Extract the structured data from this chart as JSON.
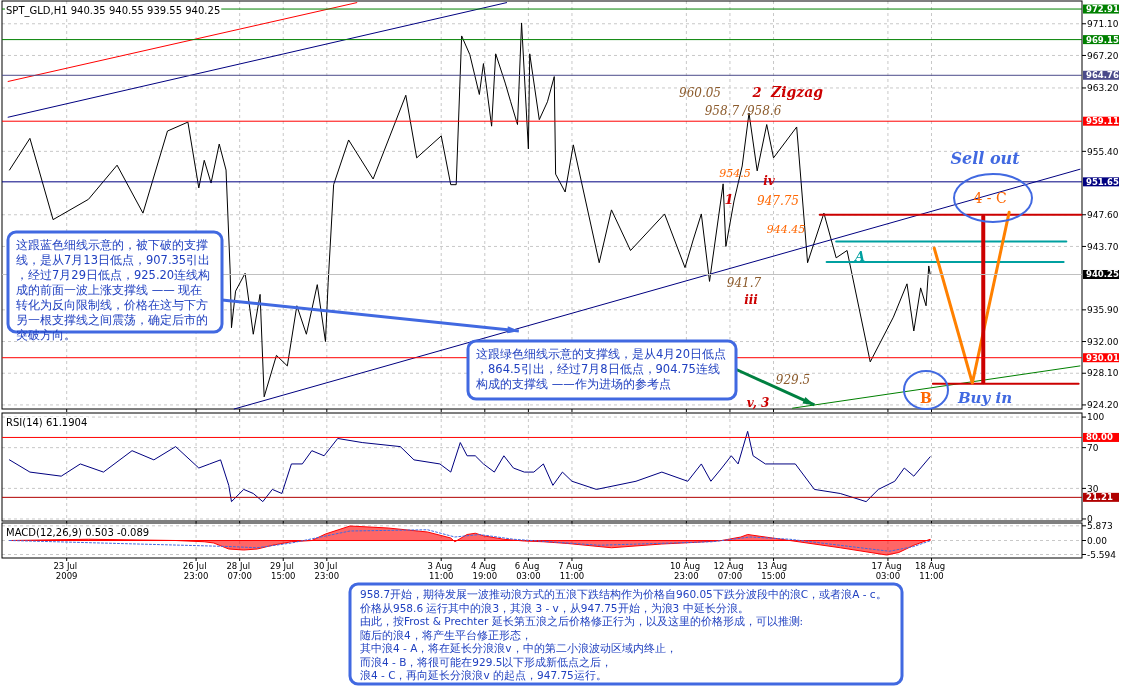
{
  "chart_data": [
    {
      "type": "line",
      "title": "SPT_GLD,H1  940.35 940.55 939.55 940.25",
      "xlim": [
        "2009-07-21T00:30",
        "2009-08-23T01:30"
      ],
      "ylim": [
        923.7,
        973.9
      ],
      "xticks": [
        {
          "value": "2009-07-23T00:00",
          "label": null
        },
        {
          "value": "2009-07-26T23:00",
          "label": null
        },
        {
          "value": "2009-07-28T07:00",
          "label": null
        },
        {
          "value": "2009-07-29T15:00",
          "label": null
        },
        {
          "value": "2009-07-30T23:00",
          "label": null
        },
        {
          "value": "2009-08-03T11:00",
          "label": null
        },
        {
          "value": "2009-08-04T19:00",
          "label": null
        },
        {
          "value": "2009-08-06T03:00",
          "label": null
        },
        {
          "value": "2009-08-07T11:00",
          "label": null
        },
        {
          "value": "2009-08-10T23:00",
          "label": null
        },
        {
          "value": "2009-08-12T07:00",
          "label": null
        },
        {
          "value": "2009-08-13T15:00",
          "label": null
        },
        {
          "value": "2009-08-17T03:00",
          "label": null
        },
        {
          "value": "2009-08-18T11:00",
          "label": null
        }
      ],
      "yticks": [
        {
          "value": 971.1,
          "label": "971.10"
        },
        {
          "value": 967.2,
          "label": "967.20"
        },
        {
          "value": 963.2,
          "label": "963.20"
        },
        {
          "value": 955.4,
          "label": "955.40"
        },
        {
          "value": 947.6,
          "label": "947.60"
        },
        {
          "value": 943.7,
          "label": "943.70"
        },
        {
          "value": 935.9,
          "label": "935.90"
        },
        {
          "value": 932.0,
          "label": "932.00"
        },
        {
          "value": 928.1,
          "label": "928.10"
        },
        {
          "value": 924.2,
          "label": "924.20"
        }
      ],
      "tick_labels": "y",
      "grid": true,
      "series": [
        {
          "color": "#000000",
          "x": [
            "2009-07-21T06:00",
            "2009-07-21T21:00",
            "2009-07-22T14:00",
            "2009-07-23T16:00",
            "2009-07-24T13:00",
            "2009-07-25T08:00",
            "2009-07-26T02:00",
            "2009-07-26T17:00",
            "2009-07-27T01:00",
            "2009-07-27T05:00",
            "2009-07-27T10:00",
            "2009-07-27T16:00",
            "2009-07-27T21:00",
            "2009-07-28T00:00",
            "2009-07-28T01:00",
            "2009-07-28T04:00",
            "2009-07-28T11:00",
            "2009-07-28T17:00",
            "2009-07-28T22:00",
            "2009-07-29T01:00",
            "2009-07-29T10:00",
            "2009-07-29T18:00",
            "2009-07-30T01:00",
            "2009-07-30T08:00",
            "2009-07-30T16:00",
            "2009-07-30T22:00",
            "2009-07-31T00:00",
            "2009-07-31T04:00",
            "2009-07-31T15:00",
            "2009-08-01T09:00",
            "2009-08-02T09:00",
            "2009-08-02T17:00",
            "2009-08-03T11:00",
            "2009-08-03T18:00",
            "2009-08-03T22:00",
            "2009-08-04T02:00",
            "2009-08-04T08:00",
            "2009-08-04T15:00",
            "2009-08-04T18:00",
            "2009-08-05T00:00",
            "2009-08-05T03:00",
            "2009-08-05T10:00",
            "2009-08-05T14:00",
            "2009-08-05T19:00",
            "2009-08-05T22:00",
            "2009-08-06T03:00",
            "2009-08-06T04:00",
            "2009-08-06T11:00",
            "2009-08-06T17:00",
            "2009-08-06T22:00",
            "2009-08-06T23:00",
            "2009-08-07T06:00",
            "2009-08-07T12:00",
            "2009-08-08T07:00",
            "2009-08-08T16:00",
            "2009-08-09T06:00",
            "2009-08-10T07:00",
            "2009-08-10T22:00",
            "2009-08-11T04:00",
            "2009-08-11T10:00",
            "2009-08-11T16:00",
            "2009-08-12T02:00",
            "2009-08-12T04:00",
            "2009-08-12T10:00",
            "2009-08-12T16:00",
            "2009-08-12T21:00",
            "2009-08-13T03:00",
            "2009-08-13T10:00",
            "2009-08-13T15:00",
            "2009-08-14T08:00",
            "2009-08-14T16:00",
            "2009-08-15T04:00",
            "2009-08-15T13:00",
            "2009-08-15T21:00",
            "2009-08-16T14:00",
            "2009-08-17T07:00",
            "2009-08-17T17:00",
            "2009-08-17T22:00",
            "2009-08-18T03:00",
            "2009-08-18T07:00",
            "2009-08-18T09:00",
            "2009-08-18T10:00"
          ],
          "values": [
            953.1,
            957.0,
            947.0,
            949.5,
            953.7,
            947.8,
            957.9,
            959.0,
            950.9,
            954.3,
            951.5,
            956.3,
            953.1,
            940.8,
            933.7,
            938.2,
            940.4,
            932.9,
            937.8,
            925.2,
            930.3,
            929.0,
            936.4,
            932.9,
            939.0,
            932.0,
            939.3,
            951.3,
            956.8,
            952.0,
            962.3,
            954.6,
            957.3,
            951.3,
            951.3,
            969.6,
            967.3,
            962.4,
            966.2,
            958.5,
            967.4,
            963.8,
            961.5,
            958.7,
            971.2,
            955.7,
            967.4,
            959.3,
            961.5,
            964.6,
            952.6,
            950.4,
            956.2,
            941.7,
            948.2,
            943.2,
            947.7,
            941.1,
            944.5,
            947.7,
            939.4,
            951.4,
            943.7,
            949.3,
            953.6,
            960.1,
            953.0,
            958.7,
            954.6,
            958.4,
            941.7,
            947.8,
            942.3,
            943.2,
            929.5,
            935.0,
            939.1,
            933.3,
            938.6,
            936.4,
            941.3,
            940.3
          ]
        },
        {
          "color": "#ff0000",
          "x": [
            "2009-07-21T05:00",
            "2009-07-31T21:00"
          ],
          "values": [
            964.0,
            973.7
          ]
        },
        {
          "color": "#000080",
          "x": [
            "2009-07-21T05:00",
            "2009-08-05T11:00"
          ],
          "values": [
            959.6,
            973.7
          ]
        },
        {
          "color": "#000080",
          "x": [
            "2009-07-28T03:00",
            "2009-08-23T00:00"
          ],
          "values": [
            923.7,
            953.2
          ]
        },
        {
          "color": "#008000",
          "x": [
            "2009-08-14T05:00",
            "2009-08-23T00:00"
          ],
          "values": [
            923.8,
            929.0
          ]
        },
        {
          "color": "#cc0000",
          "x": [
            "2009-08-15T01:00",
            "2009-08-23T01:00"
          ],
          "values": [
            947.6,
            947.6
          ]
        },
        {
          "color": "#00a0a0",
          "x": [
            "2009-08-15T13:00",
            "2009-08-22T14:00"
          ],
          "values": [
            944.3,
            944.3
          ]
        },
        {
          "color": "#00a0a0",
          "x": [
            "2009-08-15T06:00",
            "2009-08-22T12:00"
          ],
          "values": [
            941.8,
            941.8
          ]
        },
        {
          "color": "#cc0000",
          "x": [
            "2009-08-18T12:00",
            "2009-08-22T23:00"
          ],
          "values": [
            926.8,
            926.8
          ]
        },
        {
          "color": "#ff8000",
          "x": [
            "2009-08-18T13:00",
            "2009-08-19T17:00",
            "2009-08-20T20:00"
          ],
          "values": [
            943.5,
            926.9,
            947.9
          ]
        },
        {
          "color": "#cc0000",
          "x": [
            "2009-08-20T01:00",
            "2009-08-20T01:00"
          ],
          "values": [
            927.0,
            947.4
          ]
        }
      ],
      "ref_lines": [
        {
          "axis": "y",
          "value": 972.91,
          "label": "972.91",
          "color": "#008000"
        },
        {
          "axis": "y",
          "value": 969.15,
          "label": "969.15",
          "color": "#008000"
        },
        {
          "axis": "y",
          "value": 964.76,
          "label": "964.76",
          "color": "#4a4a8a"
        },
        {
          "axis": "y",
          "value": 959.11,
          "label": "959.11",
          "color": "#ff0000"
        },
        {
          "axis": "y",
          "value": 951.65,
          "label": "951.65",
          "color": "#000080"
        },
        {
          "axis": "y",
          "value": 940.25,
          "label": "940.25",
          "color": "#c0c0c0"
        },
        {
          "axis": "y",
          "value": 930.01,
          "label": "930.01",
          "color": "#ff0000"
        }
      ],
      "annotations": [
        "960.05",
        "2",
        "Zigzag",
        "958.7 /958.6",
        "954.5",
        "iv",
        "1",
        "947.75",
        "944.45",
        "A",
        "941.7",
        "iii",
        "929.5",
        "v,  3",
        "Sell out",
        "4 - C",
        "B",
        "Buy in",
        {
          "text": "这跟蓝色细线示意的，被下破的支撑线，是从7月13日低点，907.35引出，经过7月29日低点，925.20连线构成的前面一波上涨支撑线 —— 现在转化为反向限制线，价格在这与下方另一根支撑线之间震荡，确定后市的突破方向。",
          "x": "2009-08-05T20:00",
          "y": 933.3
        },
        {
          "text": "这跟绿色细线示意的支撑线，是从4月20日低点，864.5引出，经过7月8日低点，904.75连线构成的支撑线 ——作为进场的参考点",
          "x": "2009-08-14T21:00",
          "y": 924.2
        },
        "958.7开始，期待发展一波推动浪方式的五浪下跌结构作为价格自960.05下跌分波段中的浪C，或者浪A - c。",
        "价格从958.6 运行其中的浪3，其浪 3 - v，从947.75开始，为浪3 中延长分浪。",
        "由此，按Frost & Prechter 延长第五浪之后价格修正行为，以及这里的价格形成，可以推测:",
        "随后的浪4，将产生平台修正形态，",
        "其中浪4 - A，将在延长分浪浪v，中的第二小浪波动区域内终止，",
        "而浪4 - B，将很可能在929.5以下形成新低点之后，",
        "浪4 - C，再向延长分浪浪v 的起点，947.75运行。"
      ]
    },
    {
      "type": "line",
      "title": "RSI(14) 61.1904",
      "xlim": [
        "2009-07-21T00:30",
        "2009-08-23T01:30"
      ],
      "ylim": [
        -2,
        104
      ],
      "xticks": [
        {
          "value": "2009-07-23T00:00",
          "label": null
        },
        {
          "value": "2009-07-26T23:00",
          "label": null
        },
        {
          "value": "2009-07-28T07:00",
          "label": null
        },
        {
          "value": "2009-07-29T15:00",
          "label": null
        },
        {
          "value": "2009-07-30T23:00",
          "label": null
        },
        {
          "value": "2009-08-03T11:00",
          "label": null
        },
        {
          "value": "2009-08-04T19:00",
          "label": null
        },
        {
          "value": "2009-08-06T03:00",
          "label": null
        },
        {
          "value": "2009-08-07T11:00",
          "label": null
        },
        {
          "value": "2009-08-10T23:00",
          "label": null
        },
        {
          "value": "2009-08-12T07:00",
          "label": null
        },
        {
          "value": "2009-08-13T15:00",
          "label": null
        },
        {
          "value": "2009-08-17T03:00",
          "label": null
        },
        {
          "value": "2009-08-18T11:00",
          "label": null
        }
      ],
      "yticks": [
        100,
        70,
        30,
        0
      ],
      "tick_labels": "y",
      "grid": true,
      "series": [
        {
          "color": "#000080",
          "x": [
            "2009-07-21T06:00",
            "2009-07-21T21:00",
            "2009-07-22T20:00",
            "2009-07-23T10:00",
            "2009-07-24T03:00",
            "2009-07-25T00:00",
            "2009-07-25T16:00",
            "2009-07-26T08:00",
            "2009-07-27T01:00",
            "2009-07-27T09:00",
            "2009-07-27T17:00",
            "2009-07-27T23:00",
            "2009-07-28T01:00",
            "2009-07-28T10:00",
            "2009-07-28T17:00",
            "2009-07-29T00:00",
            "2009-07-29T07:00",
            "2009-07-29T14:00",
            "2009-07-29T21:00",
            "2009-07-30T05:00",
            "2009-07-30T12:00",
            "2009-07-30T21:00",
            "2009-07-31T07:00",
            "2009-08-01T01:00",
            "2009-08-02T05:00",
            "2009-08-02T15:00",
            "2009-08-03T10:00",
            "2009-08-03T18:00",
            "2009-08-04T01:00",
            "2009-08-04T06:00",
            "2009-08-04T12:00",
            "2009-08-04T18:00",
            "2009-08-05T02:00",
            "2009-08-05T09:00",
            "2009-08-05T16:00",
            "2009-08-06T00:00",
            "2009-08-06T07:00",
            "2009-08-06T14:00",
            "2009-08-06T21:00",
            "2009-08-07T04:00",
            "2009-08-07T11:00",
            "2009-08-08T05:00",
            "2009-08-09T10:00",
            "2009-08-10T05:00",
            "2009-08-11T00:00",
            "2009-08-11T10:00",
            "2009-08-11T17:00",
            "2009-08-12T01:00",
            "2009-08-12T08:00",
            "2009-08-12T13:00",
            "2009-08-12T20:00",
            "2009-08-13T00:00",
            "2009-08-13T09:00",
            "2009-08-14T07:00",
            "2009-08-14T21:00",
            "2009-08-15T16:00",
            "2009-08-16T11:00",
            "2009-08-16T20:00",
            "2009-08-17T08:00",
            "2009-08-17T15:00",
            "2009-08-17T22:00",
            "2009-08-18T10:00"
          ],
          "values": [
            58,
            46,
            42,
            54,
            46,
            67,
            58,
            71,
            50,
            54,
            58,
            33,
            17,
            29,
            25,
            17,
            29,
            25,
            54,
            54,
            67,
            62,
            79,
            75,
            71,
            58,
            54,
            46,
            75,
            62,
            62,
            54,
            46,
            62,
            50,
            46,
            46,
            54,
            33,
            46,
            37,
            29,
            37,
            46,
            37,
            54,
            37,
            50,
            62,
            54,
            86,
            62,
            54,
            54,
            29,
            25,
            17,
            29,
            37,
            50,
            42,
            61
          ]
        }
      ],
      "ref_lines": [
        {
          "axis": "y",
          "value": 80,
          "label": "80.00",
          "color": "#ff0000"
        },
        {
          "axis": "y",
          "value": 21.21,
          "label": "21.21",
          "color": "#b00000"
        }
      ]
    },
    {
      "type": "area",
      "title": "MACD(12,26,9) 0.503 -0.089",
      "xlim": [
        "2009-07-21T00:30",
        "2009-08-23T01:30"
      ],
      "ylim": [
        -7.0,
        7.0
      ],
      "xticks": [
        {
          "value": "2009-07-23T00:00",
          "label": "23 Jul 2009"
        },
        {
          "value": "2009-07-26T23:00",
          "label": "26 Jul 23:00"
        },
        {
          "value": "2009-07-28T07:00",
          "label": "28 Jul 07:00"
        },
        {
          "value": "2009-07-29T15:00",
          "label": "29 Jul 15:00"
        },
        {
          "value": "2009-07-30T23:00",
          "label": "30 Jul 23:00"
        },
        {
          "value": "2009-08-03T11:00",
          "label": "3 Aug 11:00"
        },
        {
          "value": "2009-08-04T19:00",
          "label": "4 Aug 19:00"
        },
        {
          "value": "2009-08-06T03:00",
          "label": "6 Aug 03:00"
        },
        {
          "value": "2009-08-07T11:00",
          "label": "7 Aug 11:00"
        },
        {
          "value": "2009-08-10T23:00",
          "label": "10 Aug 23:00"
        },
        {
          "value": "2009-08-12T07:00",
          "label": "12 Aug 07:00"
        },
        {
          "value": "2009-08-13T15:00",
          "label": "13 Aug 15:00"
        },
        {
          "value": "2009-08-17T03:00",
          "label": "17 Aug 03:00"
        },
        {
          "value": "2009-08-18T11:00",
          "label": "18 Aug 11:00"
        }
      ],
      "yticks": [
        5.873,
        {
          "value": 0,
          "label": "0.00"
        },
        -5.594
      ],
      "grid": true,
      "series": [
        {
          "color": "#ff0000",
          "x": [
            "2009-07-21T06:00",
            "2009-07-23T16:00",
            "2009-07-26T08:00",
            "2009-07-27T05:00",
            "2009-07-27T12:00",
            "2009-07-27T23:00",
            "2009-07-28T10:00",
            "2009-07-28T20:00",
            "2009-07-29T07:00",
            "2009-07-29T21:00",
            "2009-07-30T12:00",
            "2009-07-30T22:00",
            "2009-07-31T16:00",
            "2009-08-01T20:00",
            "2009-08-03T01:00",
            "2009-08-03T18:00",
            "2009-08-03T21:00",
            "2009-08-04T06:00",
            "2009-08-04T12:00",
            "2009-08-04T18:00",
            "2009-08-05T09:00",
            "2009-08-06T00:00",
            "2009-08-06T14:00",
            "2009-08-07T08:00",
            "2009-08-08T16:00",
            "2009-08-10T05:00",
            "2009-08-11T07:00",
            "2009-08-12T01:00",
            "2009-08-12T15:00",
            "2009-08-12T20:00",
            "2009-08-13T05:00",
            "2009-08-14T03:00",
            "2009-08-15T16:00",
            "2009-08-17T02:00",
            "2009-08-17T11:00",
            "2009-08-17T22:00",
            "2009-08-18T10:00"
          ],
          "values": [
            0,
            0.5,
            0,
            -0.5,
            -1.0,
            -3.4,
            -3.8,
            -3.4,
            -1.9,
            -0.5,
            0,
            2.6,
            5.8,
            5.0,
            3.4,
            1.0,
            -0.5,
            2.4,
            2.9,
            1.9,
            0.5,
            -0.2,
            -0.5,
            -1.2,
            -2.9,
            -1.4,
            -0.7,
            0,
            1.4,
            2.4,
            1.7,
            0,
            -2.9,
            -5.8,
            -4.8,
            -1.9,
            0.5
          ]
        },
        {
          "type": "line",
          "line_style": "dotted",
          "color": "#4169e1",
          "x": [
            "2009-07-21T06:00",
            "2009-07-27T23:00",
            "2009-07-28T20:00",
            "2009-07-29T21:00",
            "2009-07-31T16:00",
            "2009-08-03T01:00",
            "2009-08-03T21:00",
            "2009-08-04T15:00",
            "2009-08-05T16:00",
            "2009-08-08T07:00",
            "2009-08-11T18:00",
            "2009-08-12T22:00",
            "2009-08-14T03:00",
            "2009-08-17T04:00",
            "2009-08-17T22:00",
            "2009-08-18T10:00"
          ],
          "values": [
            0,
            -2.4,
            -2.9,
            -1.0,
            3.8,
            4.3,
            1.4,
            2.4,
            0.5,
            -1.9,
            -0.5,
            1.4,
            0.5,
            -4.3,
            -2.4,
            -0.1
          ]
        }
      ]
    }
  ]
}
